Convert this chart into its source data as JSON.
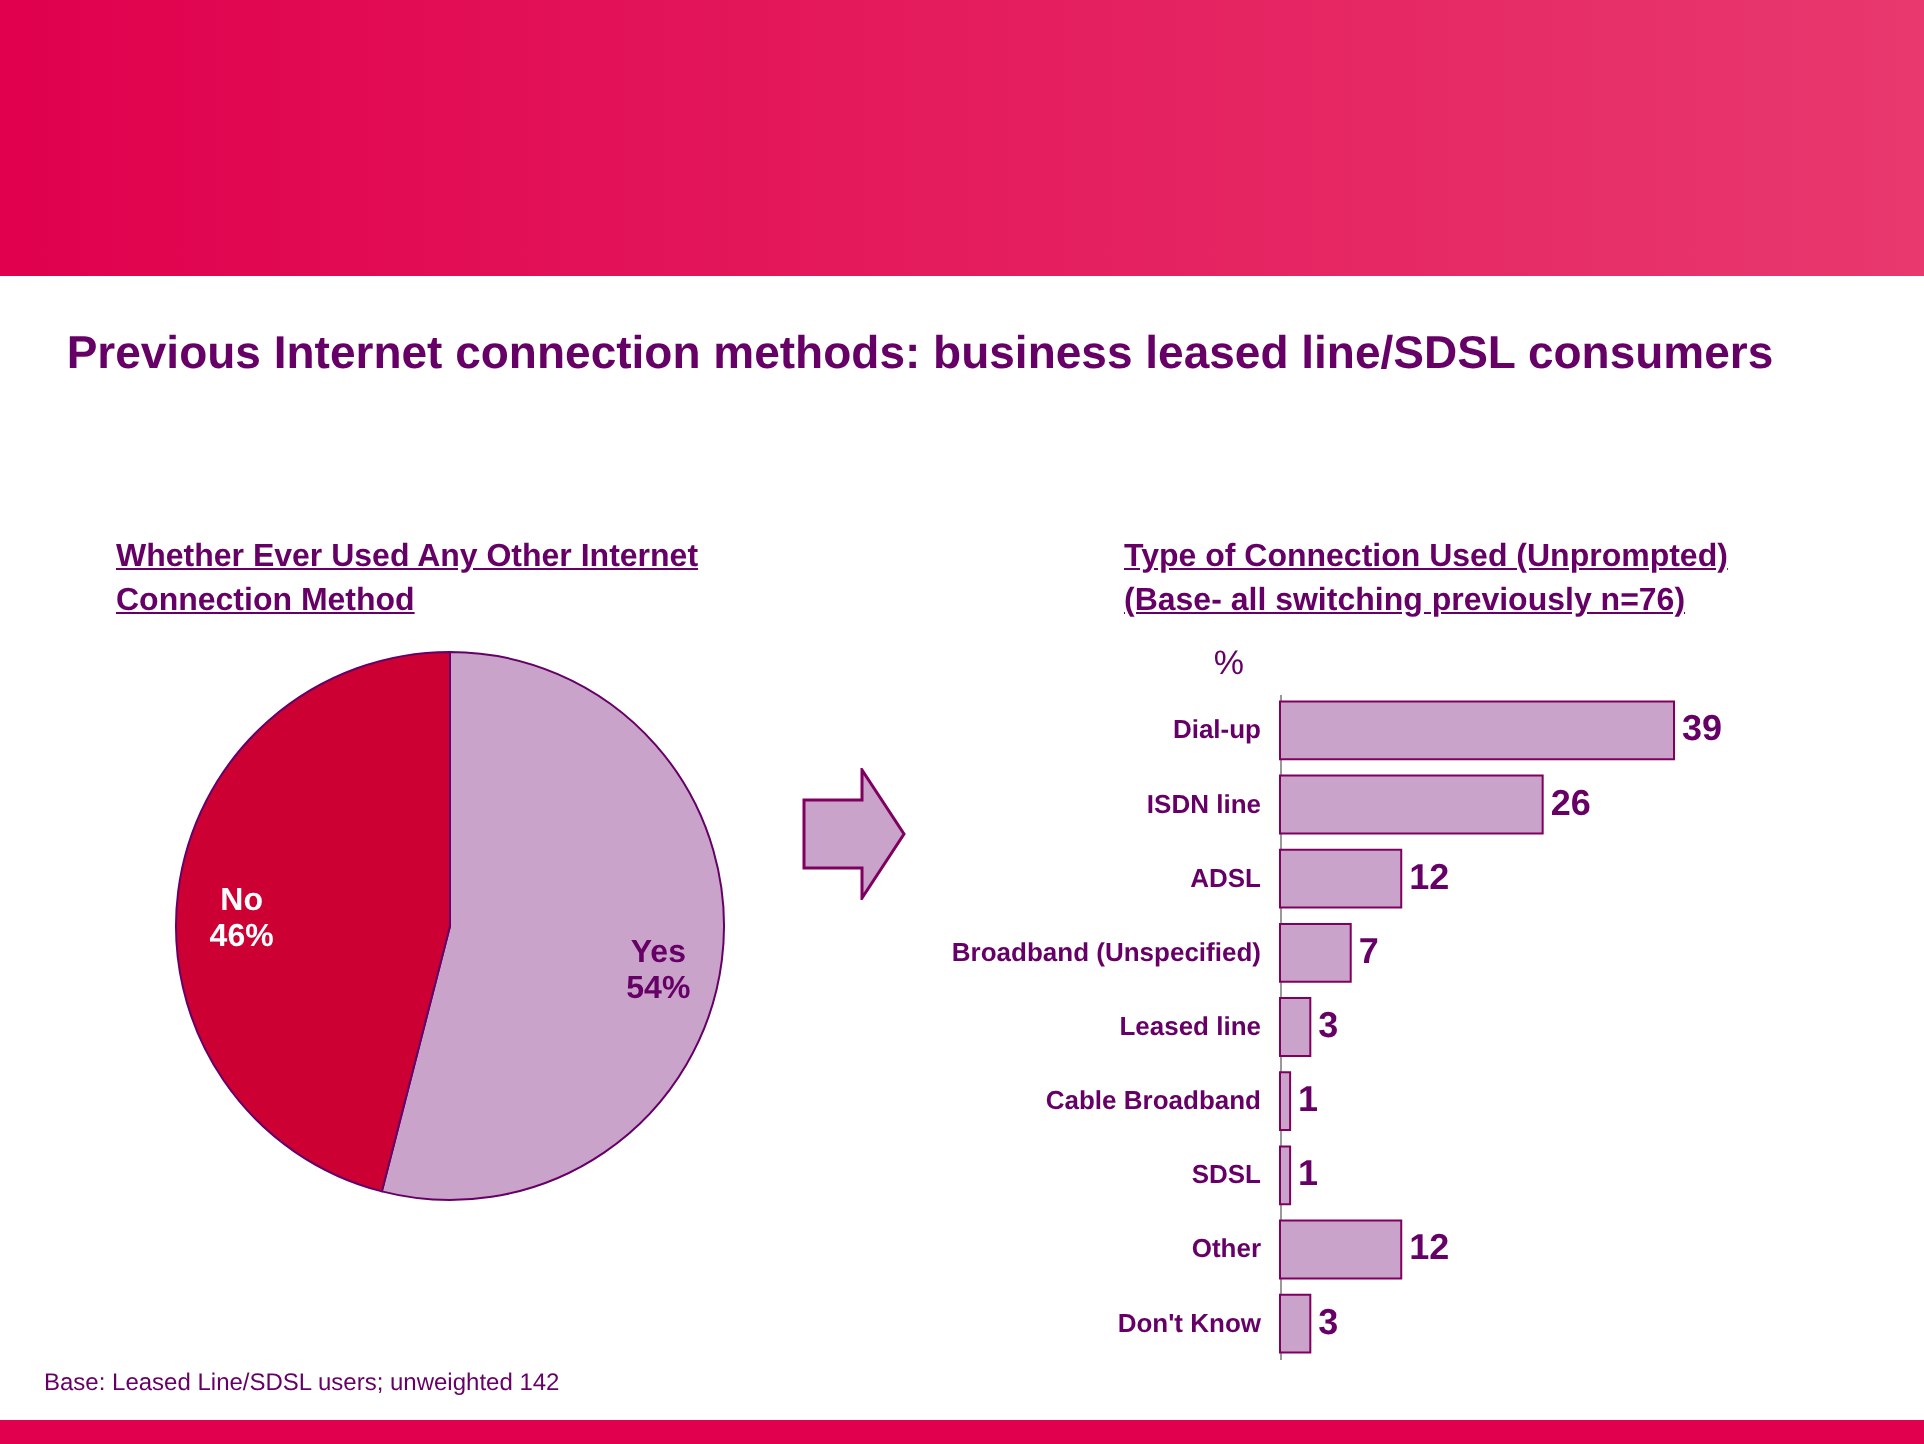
{
  "chart_data": [
    {
      "type": "pie",
      "title": "Previous Internet connection methods: business leased line/SDSL consumers",
      "subtitle": "Whether Ever Used Any Other Internet Connection Method",
      "categories": [
        "Yes",
        "No"
      ],
      "values": [
        54,
        46
      ],
      "value_labels": [
        "54%",
        "46%"
      ],
      "colors": [
        "#c9a3c9",
        "#cc0033"
      ],
      "annotations": [
        "Base: Leased Line/SDSL users; unweighted 142"
      ]
    },
    {
      "type": "bar",
      "orientation": "horizontal",
      "title": "Type of Connection Used (Unprompted)",
      "subtitle": "(Base- all switching previously n=76)",
      "xlabel": "%",
      "categories": [
        "Dial-up",
        "ISDN line",
        "ADSL",
        "Broadband (Unspecified)",
        "Leased line",
        "Cable Broadband",
        "SDSL",
        "Other",
        "Don't Know"
      ],
      "values": [
        39,
        26,
        12,
        7,
        3,
        1,
        1,
        12,
        3
      ],
      "color": "#c9a3c9",
      "data_labels": true
    }
  ]
}
